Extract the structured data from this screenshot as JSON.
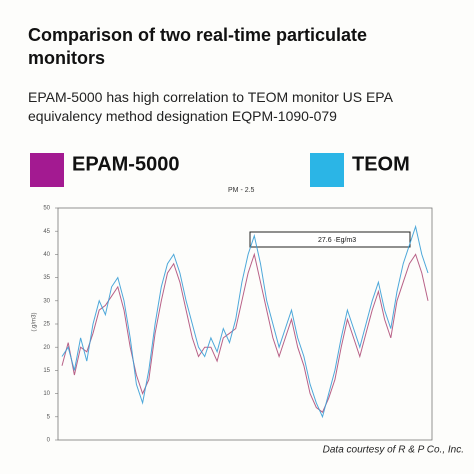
{
  "chart_data": {
    "type": "line",
    "title": "Comparison of two real-time particulate monitors",
    "subtitle": "EPAM-5000 has high correlation to TEOM monitor US EPA equivalency method designation EQPM-1090-079",
    "y_label": "(.g/m3)",
    "annotation": "PM - 2.5",
    "callout": "27.6 ·Eg/m3",
    "credit": "Data courtesy of R & P Co., Inc.",
    "ylim": [
      0,
      50
    ],
    "yticks": [
      0,
      5,
      10,
      15,
      20,
      25,
      30,
      35,
      40,
      45,
      50
    ],
    "series": [
      {
        "name": "EPAM-5000",
        "color": "#a31a91",
        "line_color": "#b0507a",
        "values": [
          16,
          21,
          14,
          20,
          19,
          23,
          28,
          29,
          31,
          33,
          28,
          20,
          14,
          10,
          13,
          23,
          30,
          36,
          38,
          34,
          28,
          22,
          18,
          20,
          20,
          17,
          22,
          23,
          24,
          30,
          36,
          40,
          34,
          28,
          22,
          18,
          22,
          26,
          20,
          16,
          10,
          7,
          6,
          9,
          13,
          20,
          26,
          22,
          18,
          23,
          28,
          32,
          26,
          22,
          30,
          34,
          38,
          40,
          36,
          30
        ]
      },
      {
        "name": "TEOM",
        "color": "#2bb5e6",
        "line_color": "#3a9fd6",
        "values": [
          18,
          20,
          15,
          22,
          17,
          25,
          30,
          27,
          33,
          35,
          30,
          22,
          12,
          8,
          15,
          25,
          33,
          38,
          40,
          36,
          30,
          25,
          20,
          18,
          22,
          19,
          24,
          21,
          26,
          34,
          40,
          44,
          38,
          30,
          25,
          20,
          24,
          28,
          22,
          18,
          12,
          8,
          5,
          10,
          15,
          22,
          28,
          24,
          20,
          25,
          30,
          34,
          28,
          24,
          32,
          38,
          42,
          46,
          40,
          36
        ]
      }
    ]
  }
}
